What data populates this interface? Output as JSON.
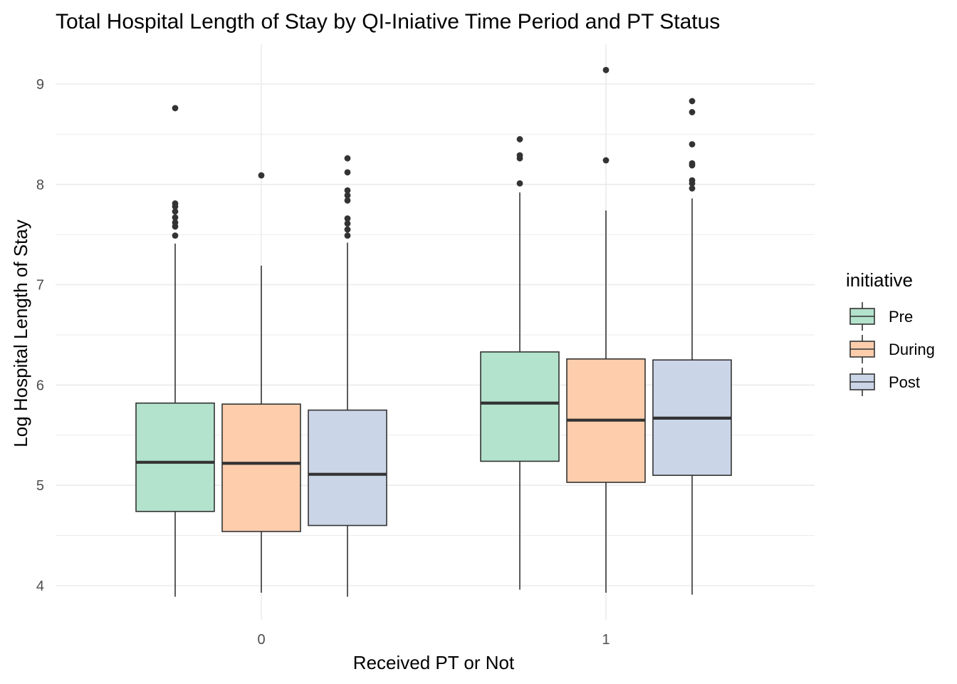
{
  "chart_data": {
    "type": "boxplot",
    "title": "Total Hospital Length of Stay by QI-Iniative Time Period and PT Status",
    "xlabel": "Received PT or Not",
    "ylabel": "Log Hospital Length of Stay",
    "categories": [
      "0",
      "1"
    ],
    "ylim": [
      3.9,
      9.4
    ],
    "yticks": [
      4,
      5,
      6,
      7,
      8,
      9
    ],
    "grid": true,
    "legend": {
      "title": "initiative",
      "placement": "right",
      "entries": [
        "Pre",
        "During",
        "Post"
      ]
    },
    "colors": {
      "Pre": "#b3e2cd",
      "During": "#fdcdac",
      "Post": "#cbd5e8",
      "outline": "#333333",
      "grid": "#ebebeb"
    },
    "series": [
      {
        "name": "Pre",
        "boxes": [
          {
            "category": "0",
            "whisker_low": 3.89,
            "q1": 4.74,
            "median": 5.23,
            "q3": 5.82,
            "whisker_high": 7.41,
            "outliers": [
              7.49,
              7.58,
              7.62,
              7.67,
              7.73,
              7.78,
              7.81,
              8.76
            ]
          },
          {
            "category": "1",
            "whisker_low": 3.96,
            "q1": 5.24,
            "median": 5.82,
            "q3": 6.33,
            "whisker_high": 7.92,
            "outliers": [
              8.01,
              8.26,
              8.29,
              8.45
            ]
          }
        ]
      },
      {
        "name": "During",
        "boxes": [
          {
            "category": "0",
            "whisker_low": 3.93,
            "q1": 4.54,
            "median": 5.22,
            "q3": 5.81,
            "whisker_high": 7.19,
            "outliers": [
              8.09
            ]
          },
          {
            "category": "1",
            "whisker_low": 3.93,
            "q1": 5.03,
            "median": 5.65,
            "q3": 6.26,
            "whisker_high": 7.74,
            "outliers": [
              8.24,
              9.14
            ]
          }
        ]
      },
      {
        "name": "Post",
        "boxes": [
          {
            "category": "0",
            "whisker_low": 3.89,
            "q1": 4.6,
            "median": 5.11,
            "q3": 5.75,
            "whisker_high": 7.42,
            "outliers": [
              7.49,
              7.55,
              7.61,
              7.66,
              7.84,
              7.89,
              7.94,
              8.12,
              8.26
            ]
          },
          {
            "category": "1",
            "whisker_low": 3.91,
            "q1": 5.1,
            "median": 5.67,
            "q3": 6.25,
            "whisker_high": 7.86,
            "outliers": [
              7.96,
              8.01,
              8.04,
              8.19,
              8.21,
              8.4,
              8.72,
              8.83
            ]
          }
        ]
      }
    ]
  }
}
